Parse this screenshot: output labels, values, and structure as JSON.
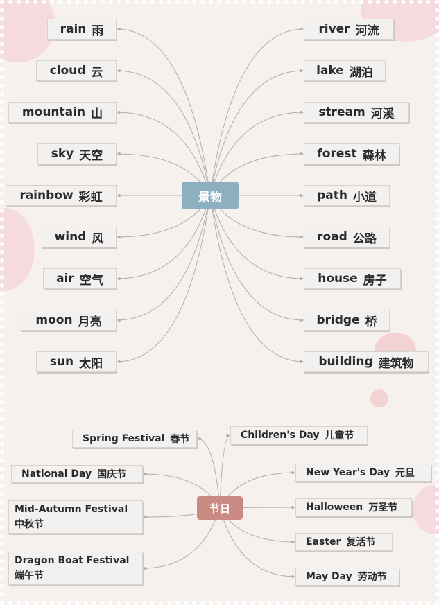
{
  "colors": {
    "hub_scenery": "#8cb0bf",
    "hub_holidays": "#c98a84",
    "link": "#a7b0b4"
  },
  "hub_scenery": "景物",
  "hub_holidays": "节日",
  "scenery_left": [
    {
      "en": "rain",
      "zh": "雨"
    },
    {
      "en": "cloud",
      "zh": "云"
    },
    {
      "en": "mountain",
      "zh": "山"
    },
    {
      "en": "sky",
      "zh": "天空"
    },
    {
      "en": "rainbow",
      "zh": "彩虹"
    },
    {
      "en": "wind",
      "zh": "风"
    },
    {
      "en": "air",
      "zh": "空气"
    },
    {
      "en": "moon",
      "zh": "月亮"
    },
    {
      "en": "sun",
      "zh": "太阳"
    }
  ],
  "scenery_right": [
    {
      "en": "river",
      "zh": "河流"
    },
    {
      "en": "lake",
      "zh": "湖泊"
    },
    {
      "en": "stream",
      "zh": "河溪"
    },
    {
      "en": "forest",
      "zh": "森林"
    },
    {
      "en": "path",
      "zh": "小道"
    },
    {
      "en": "road",
      "zh": "公路"
    },
    {
      "en": "house",
      "zh": "房子"
    },
    {
      "en": "bridge",
      "zh": "桥"
    },
    {
      "en": "building",
      "zh": "建筑物"
    }
  ],
  "holidays_left": [
    {
      "en": "Spring Festival",
      "zh": "春节"
    },
    {
      "en": "National Day",
      "zh": "国庆节"
    },
    {
      "en": "Mid-Autumn Festival",
      "zh": "中秋节"
    },
    {
      "en": "Dragon Boat Festival",
      "zh": "端午节"
    }
  ],
  "holidays_right": [
    {
      "en": "Children's Day",
      "zh": "儿童节"
    },
    {
      "en": "New Year's Day",
      "zh": "元旦"
    },
    {
      "en": "Halloween",
      "zh": "万圣节"
    },
    {
      "en": "Easter",
      "zh": "复活节"
    },
    {
      "en": "May Day",
      "zh": "劳动节"
    }
  ]
}
